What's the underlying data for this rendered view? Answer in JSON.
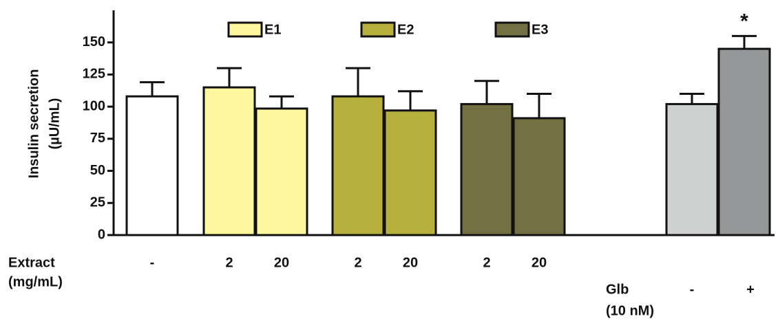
{
  "chart_data": {
    "type": "bar",
    "y_label": [
      "Insulin secretion",
      "(µU/mL)"
    ],
    "ylim": [
      0,
      175
    ],
    "yticks": [
      0,
      25,
      50,
      75,
      100,
      125,
      150
    ],
    "values": [
      108,
      115,
      98.5,
      108,
      97,
      102,
      91,
      102,
      145
    ],
    "errors": [
      11,
      15,
      9.5,
      22,
      15,
      18,
      19,
      8,
      10
    ],
    "colors": [
      "#ffffff",
      "#fff79e",
      "#fff79e",
      "#b8b03e",
      "#b8b03e",
      "#737044",
      "#737044",
      "#cfd0d0",
      "#959697"
    ],
    "row1_label": [
      "Extract",
      "(mg/mL)"
    ],
    "categories": [
      "-",
      "2",
      "20",
      "2",
      "20",
      "2",
      "20",
      null,
      null
    ],
    "row2_label": [
      "Glb",
      "(10 nM)"
    ],
    "categories2": [
      null,
      null,
      null,
      null,
      null,
      null,
      null,
      "-",
      "+"
    ],
    "legend": [
      {
        "name": "E1",
        "color": "#fff79e"
      },
      {
        "name": "E2",
        "color": "#b8b03e"
      },
      {
        "name": "E3",
        "color": "#737044"
      }
    ],
    "annotations": [
      {
        "text": "*",
        "index": 8
      }
    ]
  }
}
